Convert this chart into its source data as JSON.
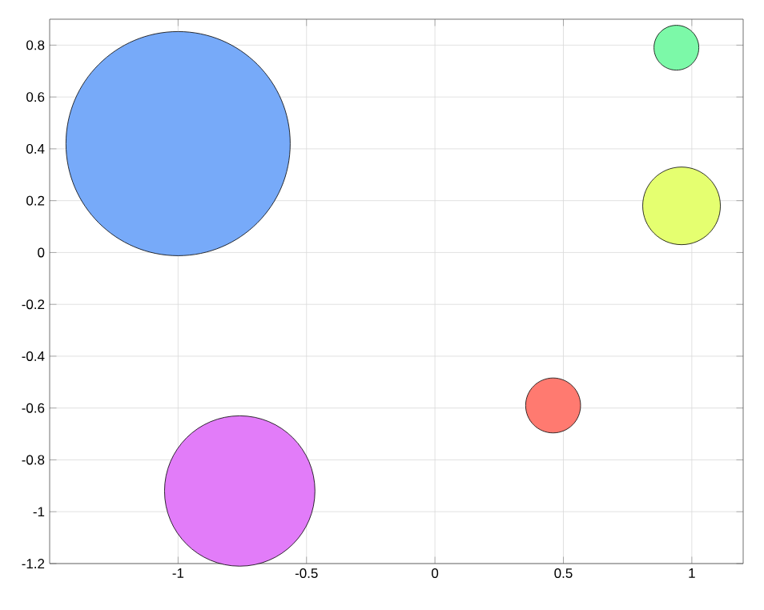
{
  "chart_data": {
    "type": "bubble",
    "x": [
      -1,
      -0.76,
      0.46,
      0.96,
      0.94
    ],
    "values": [
      0.42,
      -0.92,
      -0.59,
      0.18,
      0.79
    ],
    "sizes": [
      1,
      0.45,
      0.06,
      0.12,
      0.04
    ],
    "colors": [
      "#77aaf9",
      "#e27cf9",
      "#ff7a70",
      "#e5ff70",
      "#7cf9a8"
    ],
    "xlim": [
      -1.5,
      1.2
    ],
    "ylim": [
      -1.2,
      0.9
    ],
    "xticks": [
      -1,
      -0.5,
      0,
      0.5,
      1
    ],
    "yticks": [
      -1.2,
      -1,
      -0.8,
      -0.6,
      -0.4,
      -0.2,
      0,
      0.2,
      0.4,
      0.6,
      0.8
    ],
    "grid": true
  }
}
